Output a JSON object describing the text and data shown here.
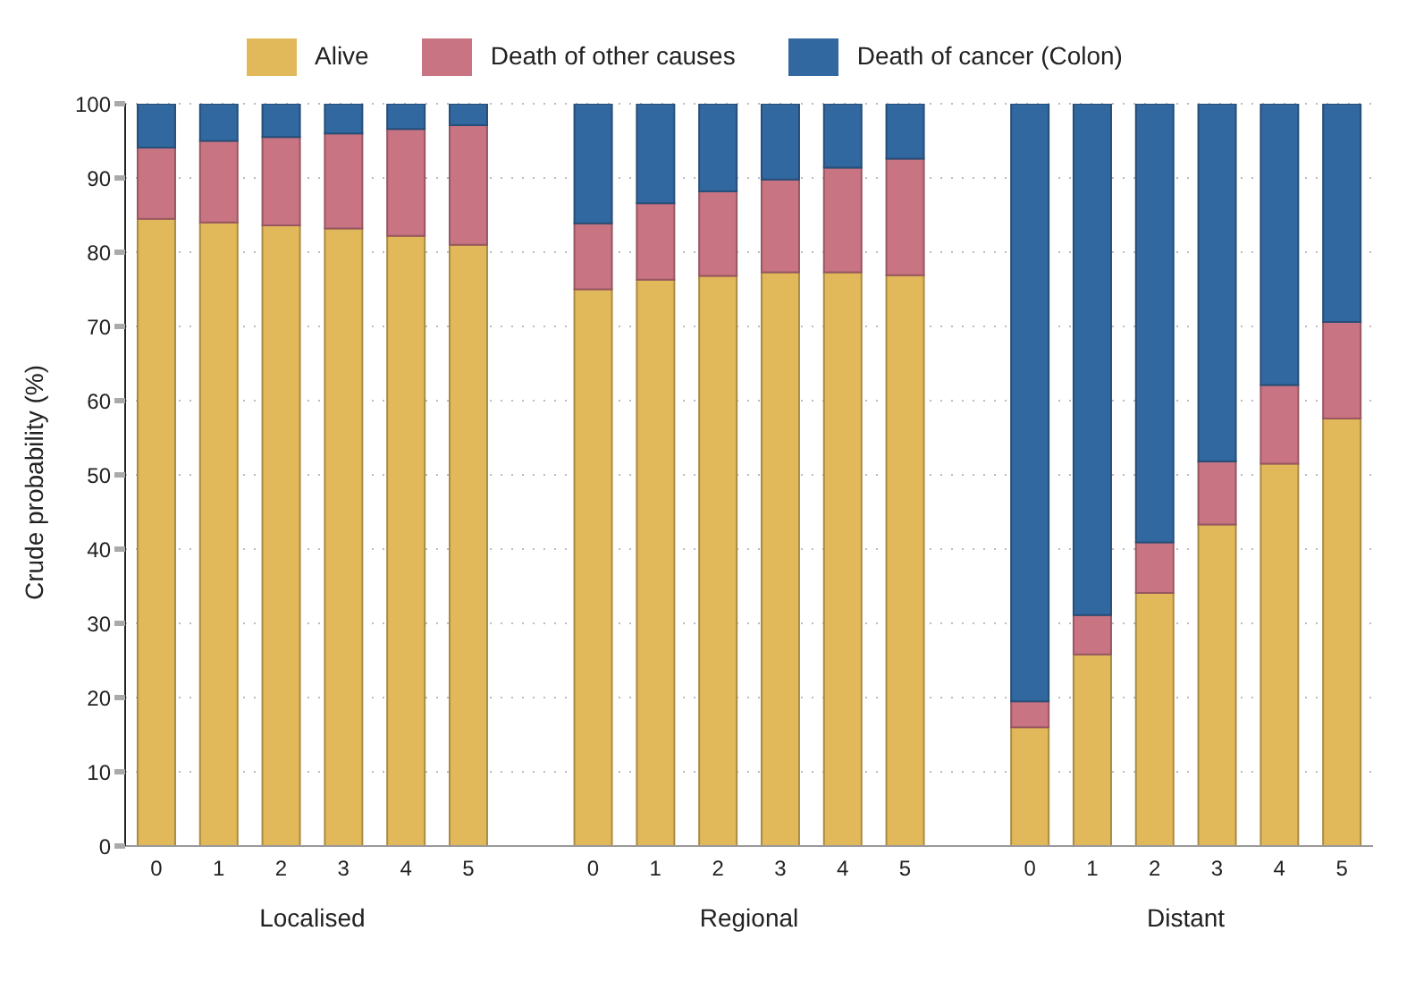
{
  "chart_data": {
    "type": "bar",
    "stacked": true,
    "ylabel": "Crude probability (%)",
    "categories": [
      "0",
      "1",
      "2",
      "3",
      "4",
      "5",
      null,
      "0",
      "1",
      "2",
      "3",
      "4",
      "5",
      null,
      "0",
      "1",
      "2",
      "3",
      "4",
      "5"
    ],
    "series": [
      {
        "name": "Alive",
        "color": "#e2b95a",
        "values": [
          84.5,
          84,
          83.6,
          83.2,
          82.2,
          81,
          null,
          75,
          76.3,
          76.8,
          77.3,
          77.3,
          76.9,
          null,
          16,
          25.8,
          34.1,
          43.3,
          51.5,
          57.6
        ]
      },
      {
        "name": "Death of other causes",
        "color": "#c97482",
        "values": [
          9.6,
          11,
          11.9,
          12.8,
          14.4,
          16.1,
          null,
          8.9,
          10.3,
          11.4,
          12.5,
          14.1,
          15.7,
          null,
          3.5,
          5.3,
          6.8,
          8.5,
          10.6,
          13
        ]
      },
      {
        "name": "Death of cancer (Colon)",
        "color": "#3268a0",
        "values": [
          5.9,
          5,
          4.5,
          4,
          3.4,
          2.9,
          null,
          16.1,
          13.4,
          11.8,
          10.2,
          8.6,
          7.4,
          null,
          80.5,
          68.9,
          59.1,
          48.2,
          37.9,
          29.4
        ]
      }
    ],
    "ylim": [
      0,
      100
    ],
    "yticks": [
      0,
      10,
      20,
      30,
      40,
      50,
      60,
      70,
      80,
      90,
      100
    ],
    "grid": "y",
    "legend": "top",
    "annotations": [
      "Localised",
      "Regional",
      "Distant"
    ]
  }
}
